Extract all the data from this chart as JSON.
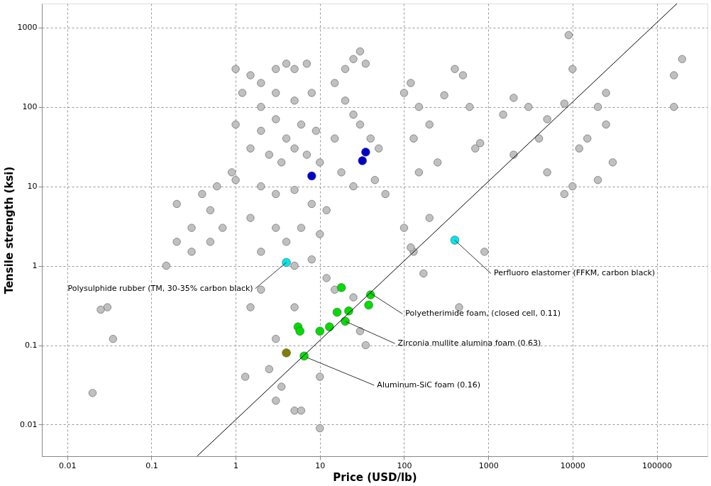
{
  "chart_data": {
    "type": "scatter",
    "xlabel": "Price (USD/lb)",
    "ylabel": "Tensile strength (ksi)",
    "log": "xy",
    "grid": true,
    "marker": "circle",
    "xlim": [
      0.005,
      400000
    ],
    "ylim": [
      0.004,
      2000
    ],
    "xticks": [
      0.01,
      0.1,
      1,
      10,
      100,
      1000,
      10000,
      100000
    ],
    "yticks": [
      0.01,
      0.1,
      1,
      10,
      100,
      1000
    ],
    "series": [
      {
        "color": "#c0c0c0",
        "x": [
          0.02,
          0.03,
          0.025,
          0.035,
          0.15,
          0.2,
          0.3,
          0.5,
          0.3,
          0.4,
          0.2,
          0.6,
          0.9,
          0.5,
          0.7,
          1,
          1.5,
          2,
          3,
          4,
          5,
          7,
          1.2,
          2,
          3,
          5,
          8,
          1,
          2,
          3,
          4,
          6,
          9,
          1.5,
          2.5,
          3.5,
          5,
          7,
          10,
          1,
          2,
          3,
          5,
          8,
          12,
          1.5,
          3,
          4,
          6,
          10,
          2,
          5,
          8,
          15,
          20,
          25,
          30,
          35,
          20,
          25,
          30,
          40,
          50,
          15,
          18,
          25,
          45,
          60,
          12,
          15,
          25,
          35,
          30,
          3,
          5,
          2,
          1.5,
          2.5,
          1.3,
          3,
          5,
          6,
          10,
          10,
          3.5,
          100,
          150,
          200,
          300,
          400,
          500,
          120,
          130,
          600,
          700,
          250,
          150,
          100,
          130,
          200,
          800,
          900,
          170,
          450,
          120,
          2000,
          3000,
          5000,
          8000,
          9000,
          10000,
          12000,
          15000,
          20000,
          25000,
          30000,
          25000,
          10000,
          8000,
          5000,
          1500,
          2000,
          4000,
          200000,
          160000,
          160000,
          20000
        ],
        "values": [
          0.025,
          0.3,
          0.28,
          0.12,
          1.0,
          2,
          3,
          2,
          1.5,
          8,
          6,
          10,
          15,
          5,
          3,
          300,
          250,
          200,
          300,
          350,
          300,
          350,
          150,
          100,
          150,
          120,
          150,
          60,
          50,
          70,
          40,
          60,
          50,
          30,
          25,
          20,
          30,
          25,
          20,
          12,
          10,
          8,
          9,
          6,
          5,
          4,
          3,
          2,
          3,
          2.5,
          1.5,
          1,
          1.2,
          200,
          300,
          400,
          500,
          350,
          120,
          80,
          60,
          40,
          30,
          40,
          15,
          10,
          12,
          8,
          0.7,
          0.5,
          0.4,
          0.1,
          0.15,
          0.12,
          0.3,
          0.5,
          0.3,
          0.05,
          0.04,
          0.02,
          0.015,
          0.015,
          0.009,
          0.04,
          0.03,
          150,
          100,
          60,
          140,
          300,
          250,
          200,
          40,
          100,
          30,
          20,
          15,
          3,
          1.5,
          4,
          35,
          1.5,
          0.8,
          0.3,
          1.7,
          130,
          100,
          70,
          110,
          800,
          300,
          30,
          40,
          100,
          60,
          20,
          150,
          10,
          8,
          15,
          80,
          25,
          40,
          400,
          250,
          100,
          12
        ]
      },
      {
        "color": "#0000cc",
        "x": [
          8,
          32,
          35
        ],
        "values": [
          13.5,
          21,
          27
        ]
      },
      {
        "color": "#00e5ee",
        "x": [
          4,
          400
        ],
        "values": [
          1.1,
          2.1
        ]
      },
      {
        "color": "#00dd00",
        "x": [
          5.5,
          5.8,
          6.5,
          10,
          13,
          18,
          20,
          22,
          40,
          38,
          16
        ],
        "values": [
          0.17,
          0.15,
          0.073,
          0.15,
          0.17,
          0.53,
          0.2,
          0.27,
          0.43,
          0.32,
          0.26
        ]
      },
      {
        "color": "#808000",
        "x": [
          4
        ],
        "values": [
          0.08
        ]
      },
      {
        "type": "line",
        "marker": "none",
        "line_style": "solid",
        "color": "#000000",
        "x": [
          0.348,
          174000
        ],
        "values": [
          0.004,
          2000
        ]
      }
    ],
    "annotations": [
      {
        "text": "Polysulphide rubber (TM, 30-35% carbon black)",
        "x": 4,
        "y": 1.1
      },
      {
        "text": "Perfluoro elastomer (FFKM, carbon black)",
        "x": 400,
        "y": 2.1
      },
      {
        "text": "Polyetherimide foam, (closed cell, 0.11)",
        "x": 40,
        "y": 0.45
      },
      {
        "text": "Zirconia mullite alumina foam (0.63)",
        "x": 20,
        "y": 0.2
      },
      {
        "text": "Aluminum-SiC foam (0.16)",
        "x": 7,
        "y": 0.07
      }
    ]
  }
}
